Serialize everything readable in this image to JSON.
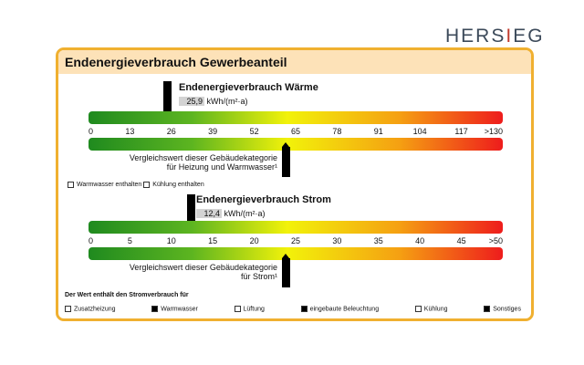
{
  "logo": {
    "text": "HERSIEG"
  },
  "title": "Endenergieverbrauch Gewerbeanteil",
  "waerme": {
    "title": "Endenergieverbrauch Wärme",
    "value": "25,9",
    "unit": "kWh/(m²·a)",
    "ticks": [
      "0",
      "13",
      "26",
      "39",
      "52",
      "65",
      "78",
      "91",
      "104",
      "117",
      ">130"
    ],
    "value_num": 25.9,
    "compare_num": 65,
    "compare_line1": "Vergleichswert dieser Gebäudekategorie",
    "compare_line2": "für Heizung und Warmwasser¹"
  },
  "waerme_options": [
    {
      "label": "Warmwasser enthalten",
      "checked": false
    },
    {
      "label": "Kühlung enthalten",
      "checked": false
    }
  ],
  "strom": {
    "title": "Endenergieverbrauch Strom",
    "value": "12,4",
    "unit": "kWh/(m²·a)",
    "ticks": [
      "0",
      "5",
      "10",
      "15",
      "20",
      "25",
      "30",
      "35",
      "40",
      "45",
      ">50"
    ],
    "value_num": 12.4,
    "compare_num": 25,
    "compare_line1": "Vergleichswert dieser Gebäudekategorie",
    "compare_line2": "für Strom¹"
  },
  "strom_caption": "Der Wert enthält den Stromverbrauch für",
  "strom_options": [
    {
      "label": "Zusatzheizung",
      "checked": false
    },
    {
      "label": "Warmwasser",
      "checked": true
    },
    {
      "label": "Lüftung",
      "checked": false
    },
    {
      "label": "eingebaute Beleuchtung",
      "checked": true
    },
    {
      "label": "Kühlung",
      "checked": false
    },
    {
      "label": "Sonstiges",
      "checked": true
    }
  ],
  "colors": {
    "border": "#f0b030",
    "header": "#fde2b8",
    "green": "#1f8a1f",
    "yellow": "#f2f20a",
    "red": "#ee1c1c"
  }
}
